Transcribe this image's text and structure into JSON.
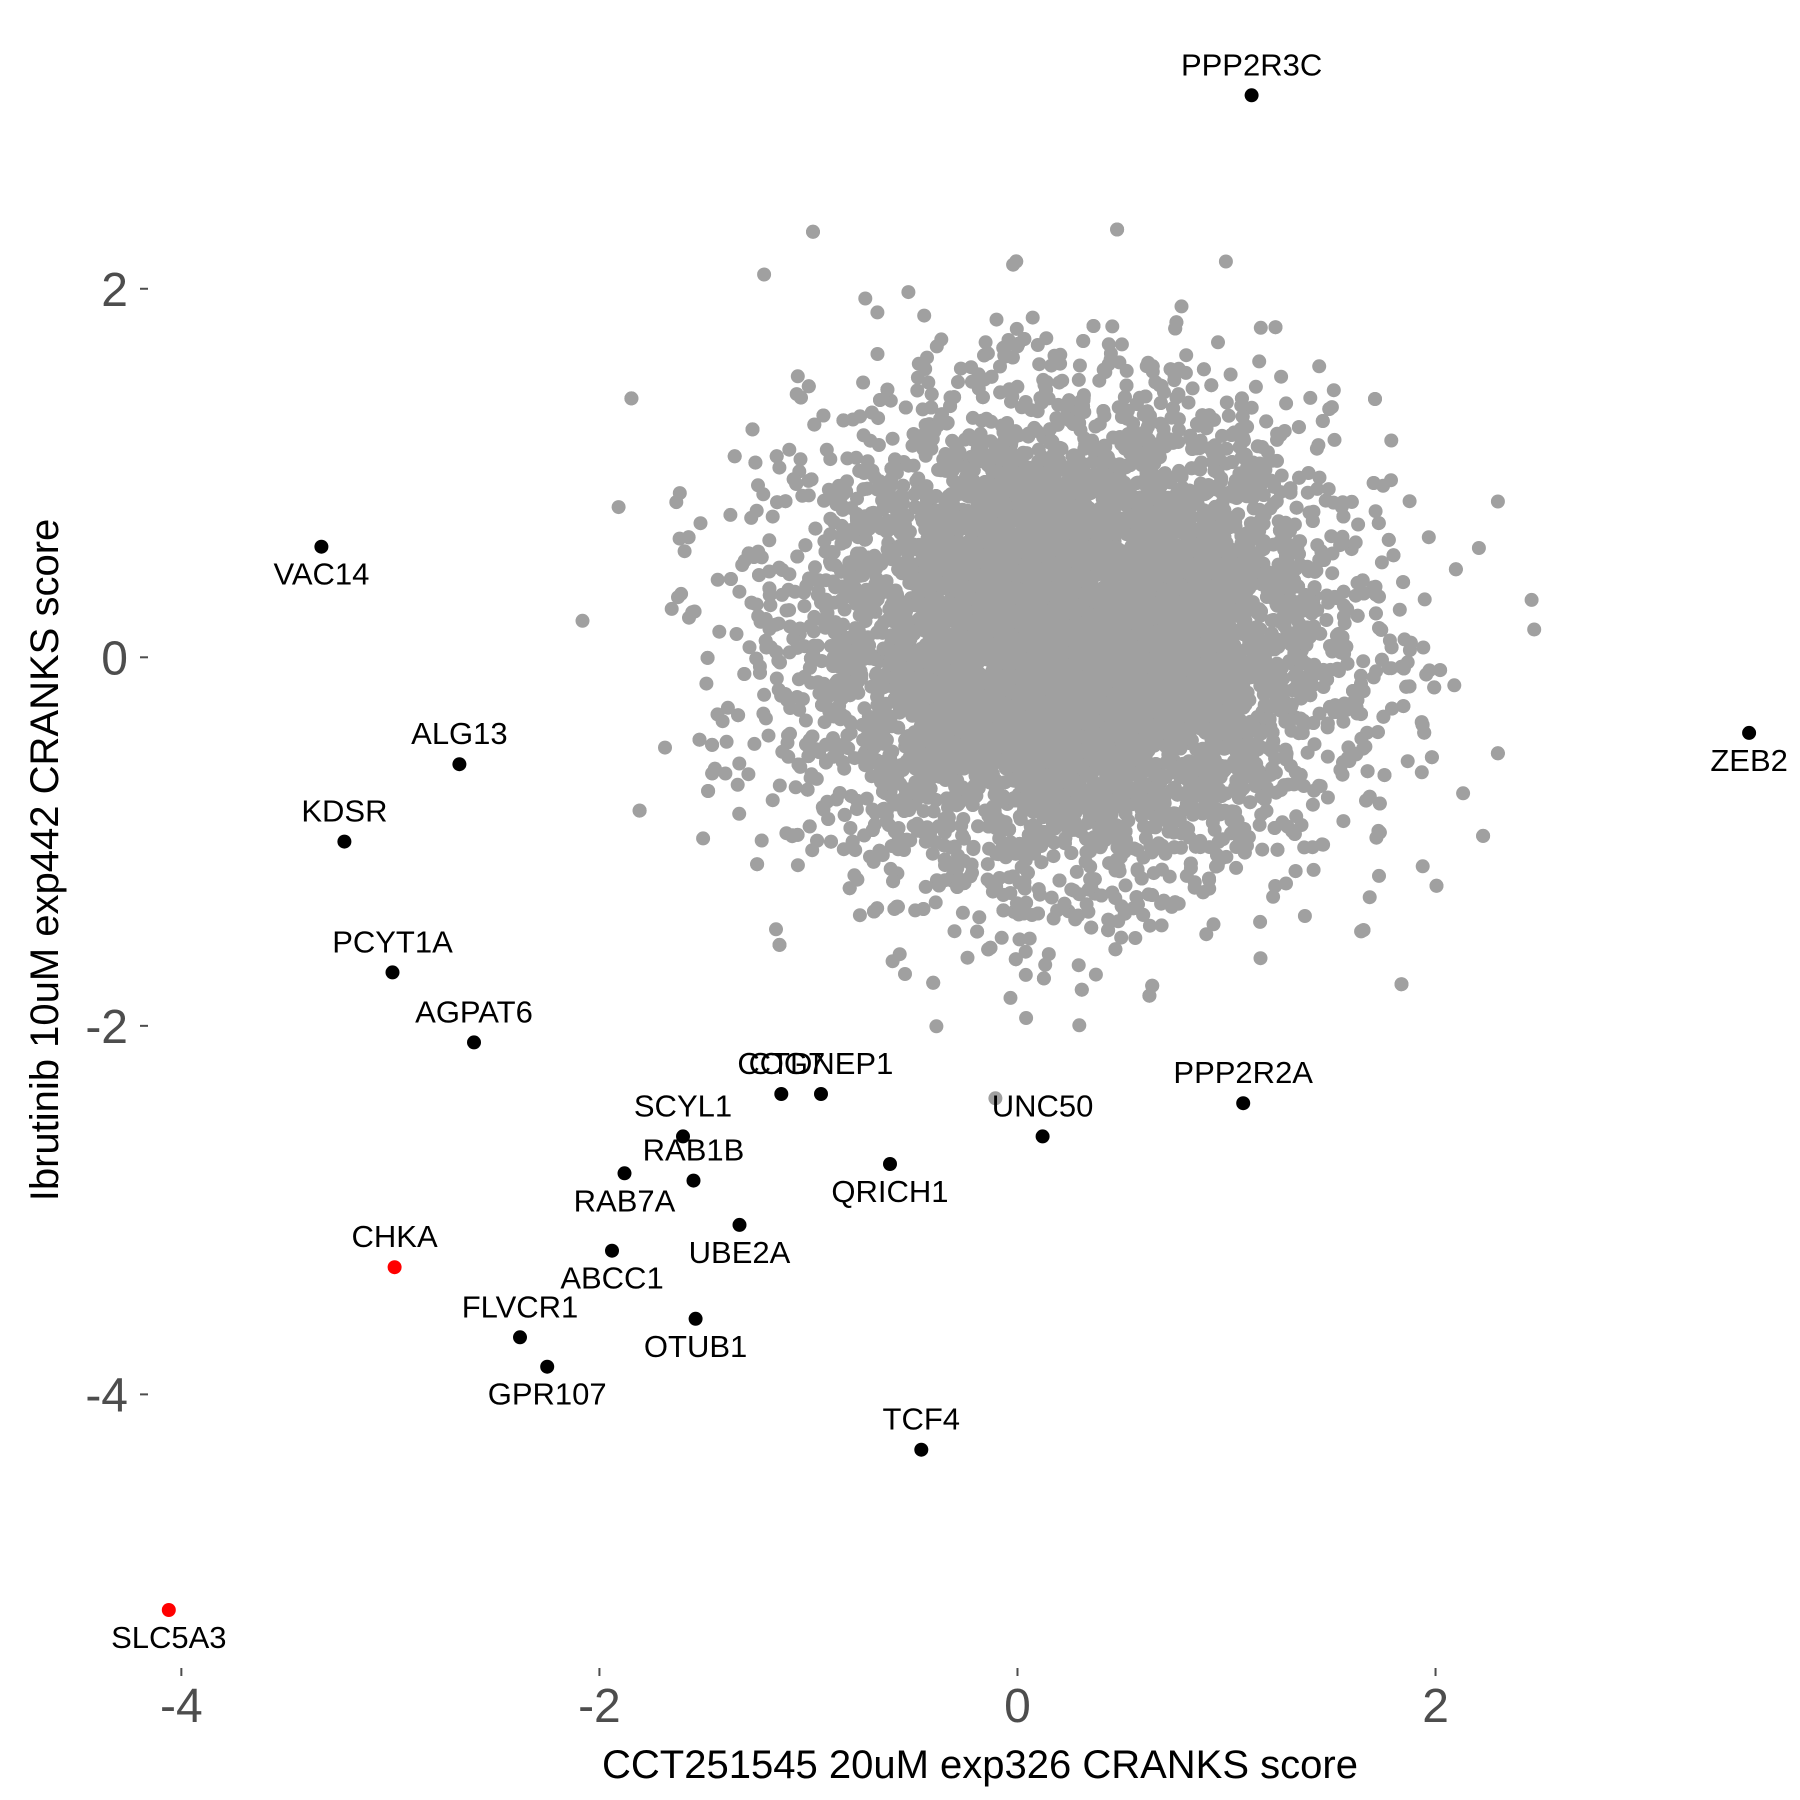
{
  "chart_data": {
    "type": "scatter",
    "xlabel": "CCT251545 20uM exp326 CRANKS score",
    "ylabel": "Ibrutinib 10uM exp442 CRANKS score",
    "xlim": [
      -4.15,
      3.6
    ],
    "ylim": [
      -5.55,
      3.35
    ],
    "xticks": [
      -4,
      -2,
      0,
      2
    ],
    "yticks": [
      -4,
      -2,
      0,
      2
    ],
    "xtick_labels": [
      "-4",
      "-2",
      "0",
      "2"
    ],
    "ytick_labels": [
      "-4",
      "-2",
      "0",
      "2"
    ],
    "grid": false,
    "colors": {
      "background_points": "#a0a0a0",
      "highlight": "#000000",
      "highlight_red": "#ff0000",
      "tick_text": "#4d4d4d"
    },
    "background_cloud": {
      "description": "dense cloud of several thousand unlabeled genes",
      "color": "#a0a0a0",
      "center": [
        0.25,
        0.1
      ],
      "approx_count": 9000
    },
    "labeled_points": [
      {
        "label": "PPP2R3C",
        "x": 1.12,
        "y": 3.05,
        "color": "#000000",
        "label_pos": "above"
      },
      {
        "label": "VAC14",
        "x": -3.33,
        "y": 0.6,
        "color": "#000000",
        "label_pos": "below"
      },
      {
        "label": "ZEB2",
        "x": 3.5,
        "y": -0.41,
        "color": "#000000",
        "label_pos": "below"
      },
      {
        "label": "ALG13",
        "x": -2.67,
        "y": -0.58,
        "color": "#000000",
        "label_pos": "above"
      },
      {
        "label": "KDSR",
        "x": -3.22,
        "y": -1.0,
        "color": "#000000",
        "label_pos": "above"
      },
      {
        "label": "PCYT1A",
        "x": -2.99,
        "y": -1.71,
        "color": "#000000",
        "label_pos": "above"
      },
      {
        "label": "AGPAT6",
        "x": -2.6,
        "y": -2.09,
        "color": "#000000",
        "label_pos": "above"
      },
      {
        "label": "COG7",
        "x": -1.13,
        "y": -2.37,
        "color": "#000000",
        "label_pos": "above"
      },
      {
        "label": "CTDNEP1",
        "x": -0.94,
        "y": -2.37,
        "color": "#000000",
        "label_pos": "above"
      },
      {
        "label": "PPP2R2A",
        "x": 1.08,
        "y": -2.42,
        "color": "#000000",
        "label_pos": "above"
      },
      {
        "label": "UNC50",
        "x": 0.12,
        "y": -2.6,
        "color": "#000000",
        "label_pos": "above"
      },
      {
        "label": "SCYL1",
        "x": -1.6,
        "y": -2.6,
        "color": "#000000",
        "label_pos": "above"
      },
      {
        "label": "RAB1B",
        "x": -1.55,
        "y": -2.84,
        "color": "#000000",
        "label_pos": "above"
      },
      {
        "label": "QRICH1",
        "x": -0.61,
        "y": -2.75,
        "color": "#000000",
        "label_pos": "below"
      },
      {
        "label": "RAB7A",
        "x": -1.88,
        "y": -2.8,
        "color": "#000000",
        "label_pos": "below"
      },
      {
        "label": "UBE2A",
        "x": -1.33,
        "y": -3.08,
        "color": "#000000",
        "label_pos": "below"
      },
      {
        "label": "ABCC1",
        "x": -1.94,
        "y": -3.22,
        "color": "#000000",
        "label_pos": "below"
      },
      {
        "label": "CHKA",
        "x": -2.98,
        "y": -3.31,
        "color": "#ff0000",
        "label_pos": "above"
      },
      {
        "label": "OTUB1",
        "x": -1.54,
        "y": -3.59,
        "color": "#000000",
        "label_pos": "below"
      },
      {
        "label": "FLVCR1",
        "x": -2.38,
        "y": -3.69,
        "color": "#000000",
        "label_pos": "above"
      },
      {
        "label": "GPR107",
        "x": -2.25,
        "y": -3.85,
        "color": "#000000",
        "label_pos": "below"
      },
      {
        "label": "TCF4",
        "x": -0.46,
        "y": -4.3,
        "color": "#000000",
        "label_pos": "above"
      },
      {
        "label": "SLC5A3",
        "x": -4.06,
        "y": -5.17,
        "color": "#ff0000",
        "label_pos": "below"
      }
    ]
  }
}
